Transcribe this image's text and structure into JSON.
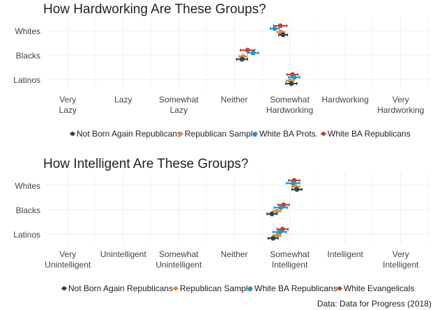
{
  "caption": "Data: Data for Progress (2018)",
  "chart_data": [
    {
      "type": "scatter",
      "title": "How Hardworking Are These Groups?",
      "categories": [
        "Whites",
        "Blacks",
        "Latinos"
      ],
      "xlim": [
        0.8,
        7.5
      ],
      "x_ticks": [
        [
          "Very",
          "Lazy"
        ],
        [
          "Lazy"
        ],
        [
          "Somewhat",
          "Lazy"
        ],
        [
          "Neither"
        ],
        [
          "Somewhat",
          "Hardworking"
        ],
        [
          "Hardworking"
        ],
        [
          "Very",
          "Hardworking"
        ]
      ],
      "legend_position": "bottom",
      "grid": true,
      "series": [
        {
          "name": "White BA Republicans",
          "color": "#c0443a",
          "values": [
            4.83,
            4.24,
            5.05
          ],
          "error": [
            0.12,
            0.13,
            0.1
          ]
        },
        {
          "name": "White BA Prots.",
          "color": "#1a9ad6",
          "values": [
            4.73,
            4.34,
            5.08
          ],
          "error": [
            0.08,
            0.1,
            0.1
          ]
        },
        {
          "name": "Republican Sample",
          "color": "#e08b3c",
          "values": [
            4.84,
            4.16,
            5.01
          ],
          "error": [
            0.07,
            0.07,
            0.07
          ]
        },
        {
          "name": "Not Born Again Republicans",
          "color": "#2f4650",
          "values": [
            4.88,
            4.14,
            5.03
          ],
          "error": [
            0.08,
            0.1,
            0.1
          ]
        }
      ],
      "legend_order": [
        "Not Born Again Republicans",
        "Republican Sample",
        "White BA Prots.",
        "White BA Republicans"
      ]
    },
    {
      "type": "scatter",
      "title": "How Intelligent Are These Groups?",
      "categories": [
        "Whites",
        "Blacks",
        "Latinos"
      ],
      "xlim": [
        0.8,
        7.5
      ],
      "x_ticks": [
        [
          "Very",
          "Unintelligent"
        ],
        [
          "Unintelligent"
        ],
        [
          "Somewhat",
          "Unintelligent"
        ],
        [
          "Neither"
        ],
        [
          "Somewhat",
          "Intelligent"
        ],
        [
          "Intelligent"
        ],
        [
          "Very",
          "Intelligent"
        ]
      ],
      "legend_position": "bottom",
      "grid": true,
      "series": [
        {
          "name": "White Evangelicals",
          "color": "#c0443a",
          "values": [
            5.08,
            4.89,
            4.87
          ],
          "error": [
            0.1,
            0.1,
            0.1
          ]
        },
        {
          "name": "White BA Republicans",
          "color": "#1a9ad6",
          "values": [
            5.06,
            4.84,
            4.82
          ],
          "error": [
            0.12,
            0.12,
            0.12
          ]
        },
        {
          "name": "Republican Sample",
          "color": "#e08b3c",
          "values": [
            5.11,
            4.77,
            4.77
          ],
          "error": [
            0.07,
            0.07,
            0.07
          ]
        },
        {
          "name": "Not Born Again Republicans",
          "color": "#2f4650",
          "values": [
            5.13,
            4.68,
            4.7
          ],
          "error": [
            0.09,
            0.09,
            0.09
          ]
        }
      ],
      "legend_order": [
        "Not Born Again Republicans",
        "Republican Sample",
        "White BA Republicans",
        "White Evangelicals"
      ]
    }
  ]
}
